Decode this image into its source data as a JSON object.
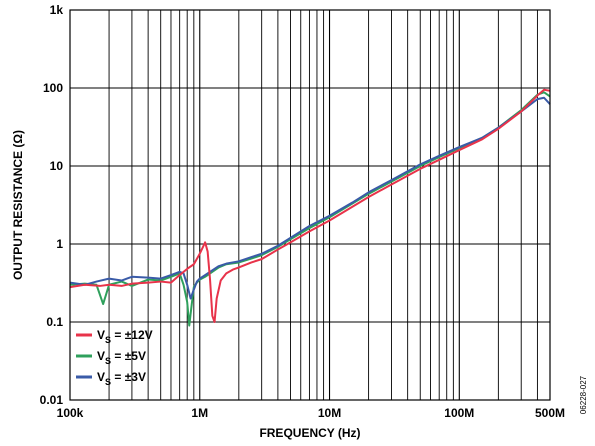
{
  "chart_data": {
    "type": "line",
    "xlabel": "FREQUENCY (Hz)",
    "ylabel": "OUTPUT RESISTANCE (Ω)",
    "x_scale": "log",
    "y_scale": "log",
    "xlim": [
      100000,
      500000000
    ],
    "ylim": [
      0.01,
      1000
    ],
    "grid": true,
    "legend_position": "bottom-left",
    "x_ticks": [
      {
        "value": 100000,
        "label": "100k"
      },
      {
        "value": 1000000,
        "label": "1M"
      },
      {
        "value": 10000000,
        "label": "10M"
      },
      {
        "value": 100000000,
        "label": "100M"
      },
      {
        "value": 500000000,
        "label": "500M"
      }
    ],
    "y_ticks": [
      {
        "value": 0.01,
        "label": "0.01"
      },
      {
        "value": 0.1,
        "label": "0.1"
      },
      {
        "value": 1,
        "label": "1"
      },
      {
        "value": 10,
        "label": "10"
      },
      {
        "value": 100,
        "label": "100"
      },
      {
        "value": 1000,
        "label": "1k"
      }
    ],
    "series": [
      {
        "name": "VS = ±12V",
        "label_main": "V",
        "label_sub": "S",
        "label_rest": " = ±12V",
        "color": "#e8334a",
        "x": [
          100000,
          130000,
          170000,
          200000,
          250000,
          300000,
          400000,
          500000,
          600000,
          700000,
          800000,
          900000,
          1000000,
          1100000,
          1150000,
          1200000,
          1250000,
          1300000,
          1350000,
          1450000,
          1600000,
          1800000,
          2000000,
          2500000,
          3000000,
          4000000,
          5000000,
          7000000,
          10000000,
          15000000,
          20000000,
          30000000,
          50000000,
          70000000,
          100000000,
          150000000,
          200000000,
          300000000,
          400000000,
          450000000,
          500000000
        ],
        "y": [
          0.28,
          0.3,
          0.29,
          0.3,
          0.29,
          0.31,
          0.32,
          0.33,
          0.32,
          0.4,
          0.48,
          0.55,
          0.75,
          1.05,
          0.8,
          0.35,
          0.12,
          0.1,
          0.2,
          0.34,
          0.42,
          0.47,
          0.5,
          0.58,
          0.64,
          0.85,
          1.05,
          1.45,
          2.0,
          3.0,
          4.0,
          5.8,
          9.2,
          12.0,
          16.0,
          22.0,
          30.0,
          50.0,
          80.0,
          95.0,
          92.0
        ]
      },
      {
        "name": "VS = ±5V",
        "label_main": "V",
        "label_sub": "S",
        "label_rest": " = ±5V",
        "color": "#2fa05c",
        "x": [
          100000,
          130000,
          160000,
          180000,
          200000,
          250000,
          300000,
          400000,
          500000,
          600000,
          700000,
          750000,
          800000,
          830000,
          860000,
          900000,
          950000,
          1000000,
          1100000,
          1200000,
          1400000,
          1600000,
          2000000,
          2500000,
          3000000,
          4000000,
          5000000,
          7000000,
          10000000,
          15000000,
          20000000,
          30000000,
          50000000,
          70000000,
          100000000,
          150000000,
          200000000,
          300000000,
          400000000,
          450000000,
          500000000
        ],
        "y": [
          0.3,
          0.31,
          0.3,
          0.17,
          0.3,
          0.33,
          0.29,
          0.35,
          0.34,
          0.38,
          0.42,
          0.3,
          0.18,
          0.09,
          0.15,
          0.28,
          0.32,
          0.35,
          0.38,
          0.42,
          0.5,
          0.55,
          0.58,
          0.65,
          0.72,
          0.92,
          1.15,
          1.6,
          2.2,
          3.3,
          4.4,
          6.3,
          10.0,
          13.0,
          17.0,
          23.0,
          31.0,
          52.0,
          82.0,
          88.0,
          78.0
        ]
      },
      {
        "name": "VS = ±3V",
        "label_main": "V",
        "label_sub": "S",
        "label_rest": " = ±3V",
        "color": "#3a5ba8",
        "x": [
          100000,
          130000,
          160000,
          200000,
          250000,
          300000,
          400000,
          500000,
          600000,
          700000,
          750000,
          800000,
          850000,
          900000,
          950000,
          1000000,
          1100000,
          1200000,
          1400000,
          1600000,
          2000000,
          2500000,
          3000000,
          4000000,
          5000000,
          7000000,
          10000000,
          15000000,
          20000000,
          30000000,
          50000000,
          70000000,
          100000000,
          150000000,
          200000000,
          300000000,
          400000000,
          450000000,
          500000000
        ],
        "y": [
          0.32,
          0.3,
          0.33,
          0.36,
          0.34,
          0.38,
          0.37,
          0.36,
          0.4,
          0.44,
          0.42,
          0.3,
          0.2,
          0.26,
          0.33,
          0.36,
          0.4,
          0.44,
          0.52,
          0.56,
          0.6,
          0.68,
          0.75,
          0.95,
          1.2,
          1.7,
          2.3,
          3.4,
          4.6,
          6.6,
          10.5,
          13.5,
          17.5,
          23.0,
          31.0,
          50.0,
          72.0,
          75.0,
          62.0
        ]
      }
    ]
  },
  "figure_id": "06228-027"
}
